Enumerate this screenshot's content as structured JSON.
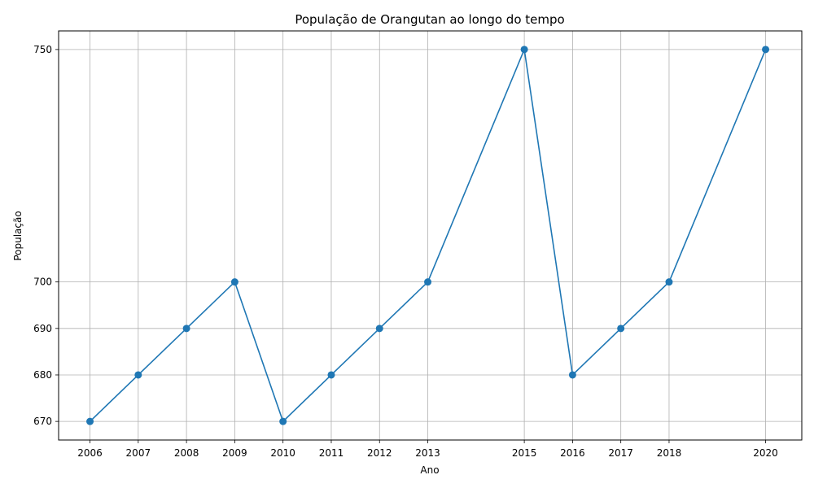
{
  "chart_data": {
    "type": "line",
    "title": "População de Orangutan ao longo do tempo",
    "xlabel": "Ano",
    "ylabel": "População",
    "x": [
      2006,
      2007,
      2008,
      2009,
      2010,
      2011,
      2012,
      2013,
      2015,
      2016,
      2017,
      2018,
      2020
    ],
    "y": [
      670,
      680,
      690,
      700,
      670,
      680,
      690,
      700,
      750,
      680,
      690,
      700,
      750
    ],
    "xticks": [
      2006,
      2007,
      2008,
      2009,
      2010,
      2011,
      2012,
      2013,
      2015,
      2016,
      2017,
      2018,
      2020
    ],
    "yticks": [
      670,
      680,
      690,
      700,
      750
    ],
    "xlim": [
      2005.35,
      2020.75
    ],
    "ylim": [
      666,
      754
    ],
    "grid": true,
    "marker": "circle",
    "color": "#1f77b4"
  }
}
